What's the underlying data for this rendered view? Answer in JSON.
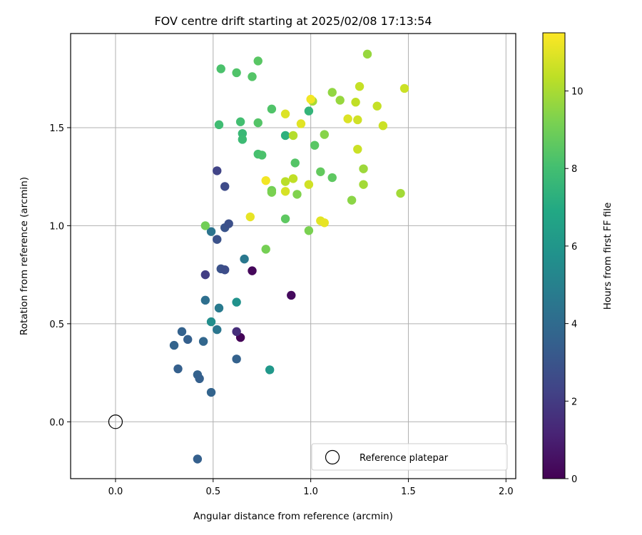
{
  "chart_data": {
    "type": "scatter",
    "title": "FOV centre drift starting at 2025/02/08 17:13:54",
    "xlabel": "Angular distance from reference (arcmin)",
    "ylabel": "Rotation from reference (arcmin)",
    "xlim": [
      -0.23,
      2.05
    ],
    "ylim": [
      -0.29,
      1.98
    ],
    "xticks": [
      0.0,
      0.5,
      1.0,
      1.5,
      2.0
    ],
    "xtick_labels": [
      "0.0",
      "0.5",
      "1.0",
      "1.5",
      "2.0"
    ],
    "yticks": [
      0.0,
      0.5,
      1.0,
      1.5
    ],
    "ytick_labels": [
      "0.0",
      "0.5",
      "1.0",
      "1.5"
    ],
    "grid": true,
    "legend": {
      "position": "bottom-right",
      "entries": [
        "Reference platepar"
      ]
    },
    "colorbar": {
      "label": "Hours from first FF file",
      "colormap": "viridis",
      "range": [
        0,
        11.5
      ],
      "ticks": [
        0,
        2,
        4,
        6,
        8,
        10
      ],
      "tick_labels": [
        "0",
        "2",
        "4",
        "6",
        "8",
        "10"
      ]
    },
    "reference_point": {
      "x": 0.0,
      "y": 0.0
    },
    "series": [
      {
        "points": [
          [
            0.64,
            0.43,
            0.1
          ],
          [
            0.7,
            0.77,
            0.2
          ],
          [
            0.9,
            0.645,
            0.3
          ],
          [
            0.62,
            0.46,
            1.5
          ],
          [
            0.46,
            0.75,
            2.1
          ],
          [
            0.52,
            1.28,
            2.3
          ],
          [
            0.56,
            1.2,
            2.6
          ],
          [
            0.52,
            0.93,
            2.9
          ],
          [
            0.56,
            0.99,
            3.0
          ],
          [
            0.58,
            1.01,
            2.8
          ],
          [
            0.54,
            0.78,
            2.9
          ],
          [
            0.56,
            0.775,
            2.7
          ],
          [
            0.34,
            0.46,
            3.6
          ],
          [
            0.3,
            0.39,
            3.7
          ],
          [
            0.37,
            0.42,
            3.5
          ],
          [
            0.45,
            0.41,
            3.8
          ],
          [
            0.32,
            0.27,
            3.5
          ],
          [
            0.42,
            0.24,
            3.6
          ],
          [
            0.43,
            0.22,
            3.5
          ],
          [
            0.49,
            0.15,
            3.7
          ],
          [
            0.62,
            0.32,
            3.6
          ],
          [
            0.42,
            -0.19,
            3.5
          ],
          [
            0.46,
            0.62,
            4.2
          ],
          [
            0.49,
            0.97,
            4.4
          ],
          [
            0.52,
            0.47,
            4.5
          ],
          [
            0.66,
            0.83,
            4.6
          ],
          [
            0.53,
            0.58,
            4.7
          ],
          [
            0.49,
            0.51,
            5.6
          ],
          [
            0.62,
            0.61,
            5.8
          ],
          [
            0.79,
            0.265,
            6.1
          ],
          [
            0.87,
            1.46,
            7.3
          ],
          [
            0.99,
            1.585,
            7.5
          ],
          [
            0.65,
            1.47,
            7.7
          ],
          [
            0.65,
            1.44,
            7.8
          ],
          [
            0.53,
            1.515,
            7.9
          ],
          [
            0.64,
            1.53,
            8.0
          ],
          [
            0.73,
            1.365,
            8.1
          ],
          [
            0.75,
            1.36,
            8.2
          ],
          [
            0.8,
            1.595,
            8.3
          ],
          [
            0.73,
            1.525,
            8.4
          ],
          [
            0.54,
            1.8,
            8.2
          ],
          [
            0.62,
            1.78,
            8.3
          ],
          [
            0.7,
            1.76,
            8.4
          ],
          [
            0.73,
            1.84,
            8.5
          ],
          [
            0.92,
            1.32,
            8.4
          ],
          [
            1.02,
            1.41,
            8.5
          ],
          [
            1.11,
            1.245,
            8.6
          ],
          [
            1.05,
            1.275,
            8.7
          ],
          [
            0.87,
            1.035,
            8.6
          ],
          [
            0.46,
            1.0,
            9.0
          ],
          [
            0.8,
            1.18,
            9.0
          ],
          [
            0.77,
            0.88,
            9.1
          ],
          [
            0.8,
            1.17,
            9.2
          ],
          [
            0.99,
            0.975,
            9.2
          ],
          [
            0.93,
            1.16,
            9.3
          ],
          [
            1.07,
            1.465,
            9.4
          ],
          [
            1.21,
            1.13,
            9.5
          ],
          [
            1.29,
            1.875,
            9.7
          ],
          [
            1.11,
            1.68,
            9.6
          ],
          [
            1.15,
            1.64,
            9.7
          ],
          [
            1.27,
            1.29,
            9.8
          ],
          [
            1.27,
            1.21,
            9.9
          ],
          [
            1.46,
            1.165,
            9.9
          ],
          [
            1.01,
            1.635,
            10.0
          ],
          [
            0.91,
            1.46,
            10.2
          ],
          [
            0.87,
            1.225,
            10.3
          ],
          [
            0.91,
            1.24,
            10.4
          ],
          [
            1.23,
            1.63,
            10.4
          ],
          [
            1.25,
            1.71,
            10.5
          ],
          [
            1.34,
            1.61,
            10.5
          ],
          [
            1.37,
            1.51,
            10.6
          ],
          [
            1.24,
            1.39,
            10.6
          ],
          [
            1.24,
            1.54,
            10.7
          ],
          [
            1.48,
            1.7,
            10.6
          ],
          [
            0.99,
            1.21,
            10.7
          ],
          [
            0.87,
            1.175,
            10.8
          ],
          [
            0.87,
            1.57,
            10.9
          ],
          [
            0.95,
            1.52,
            11.0
          ],
          [
            1.19,
            1.545,
            10.9
          ],
          [
            1.05,
            1.025,
            11.0
          ],
          [
            1.07,
            1.015,
            11.1
          ],
          [
            0.69,
            1.045,
            11.1
          ],
          [
            0.77,
            1.23,
            11.3
          ],
          [
            1.0,
            1.645,
            11.3
          ]
        ]
      }
    ]
  }
}
